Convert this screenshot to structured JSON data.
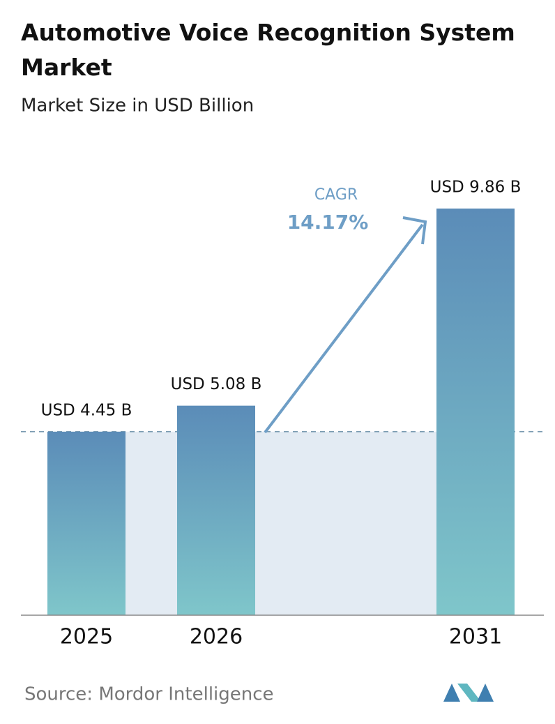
{
  "chart_data": {
    "type": "bar",
    "title": "Automotive Voice Recognition System Market",
    "subtitle": "Market Size in USD Billion",
    "categories": [
      "2025",
      "2026",
      "2031"
    ],
    "values": [
      4.45,
      5.08,
      9.86
    ],
    "value_labels": [
      "USD 4.45 B",
      "USD 5.08 B",
      "USD 9.86 B"
    ],
    "gradient": [
      "#5b8cb8",
      "#7fc6ca"
    ],
    "annotation": {
      "label": "CAGR",
      "value": "14.17%"
    },
    "source": "Source:  Mordor Intelligence"
  }
}
